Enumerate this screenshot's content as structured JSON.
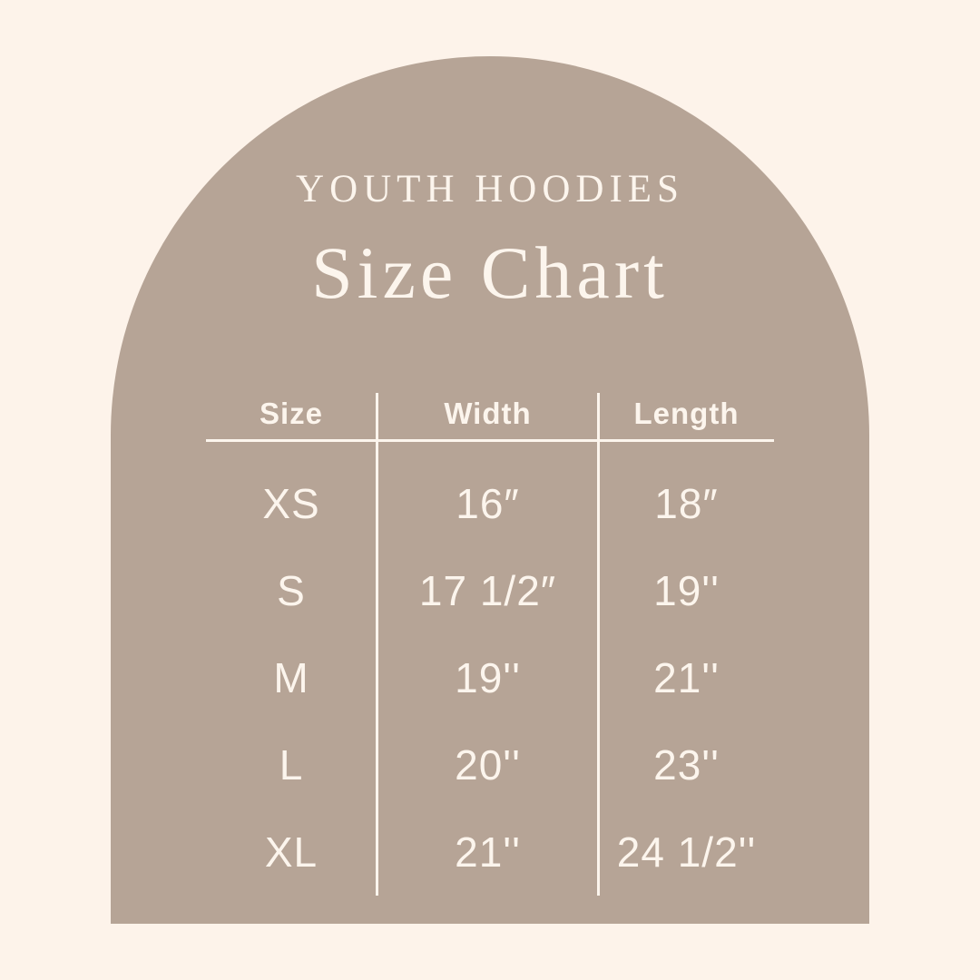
{
  "poster": {
    "subtitle": "YOUTH HOODIES",
    "title": "Size Chart"
  },
  "colors": {
    "background": "#fdf3ea",
    "arch": "#b6a496",
    "text": "#fcf5ed"
  },
  "chart_data": {
    "type": "table",
    "subtitle": "YOUTH HOODIES",
    "title": "Size Chart",
    "columns": [
      "Size",
      "Width",
      "Length"
    ],
    "rows": [
      [
        "XS",
        "16″",
        "18″"
      ],
      [
        "S",
        "17 1/2″",
        "19''"
      ],
      [
        "M",
        "19''",
        "21''"
      ],
      [
        "L",
        "20''",
        "23''"
      ],
      [
        "XL",
        "21''",
        "24 1/2''"
      ]
    ]
  }
}
